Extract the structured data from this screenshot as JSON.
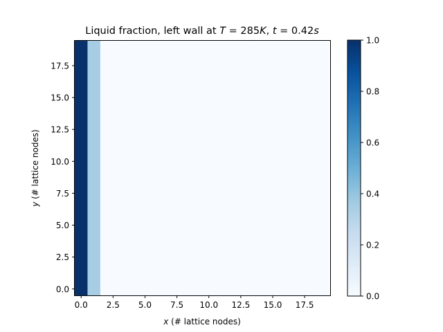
{
  "chart_data": {
    "type": "heatmap",
    "title": {
      "prefix": "Liquid fraction, left wall at ",
      "var1": "T",
      "eq1": " = 285",
      "unit1": "K",
      "sep": ", ",
      "var2": "t",
      "eq2": " = 0.42",
      "unit2": "s"
    },
    "xlabel": {
      "var": "x",
      "rest": " (# lattice nodes)"
    },
    "ylabel": {
      "var": "y",
      "rest": " (# lattice nodes)"
    },
    "grid_size": [
      20,
      20
    ],
    "xlim": [
      -0.5,
      19.5
    ],
    "ylim": [
      -0.5,
      19.5
    ],
    "x_ticks": [
      0.0,
      2.5,
      5.0,
      7.5,
      10.0,
      12.5,
      15.0,
      17.5
    ],
    "x_tick_labels": [
      "0.0",
      "2.5",
      "5.0",
      "7.5",
      "10.0",
      "12.5",
      "15.0",
      "17.5"
    ],
    "y_ticks": [
      0.0,
      2.5,
      5.0,
      7.5,
      10.0,
      12.5,
      15.0,
      17.5
    ],
    "y_tick_labels": [
      "0.0",
      "2.5",
      "5.0",
      "7.5",
      "10.0",
      "12.5",
      "15.0",
      "17.5"
    ],
    "column_values": [
      1.0,
      0.35,
      0.0,
      0.0,
      0.0,
      0.0,
      0.0,
      0.0,
      0.0,
      0.0,
      0.0,
      0.0,
      0.0,
      0.0,
      0.0,
      0.0,
      0.0,
      0.0,
      0.0,
      0.0
    ],
    "colormap": "Blues",
    "colorbar": {
      "range": [
        0.0,
        1.0
      ],
      "ticks": [
        0.0,
        0.2,
        0.4,
        0.6,
        0.8,
        1.0
      ],
      "tick_labels": [
        "0.0",
        "0.2",
        "0.4",
        "0.6",
        "0.8",
        "1.0"
      ]
    },
    "grid": false
  }
}
